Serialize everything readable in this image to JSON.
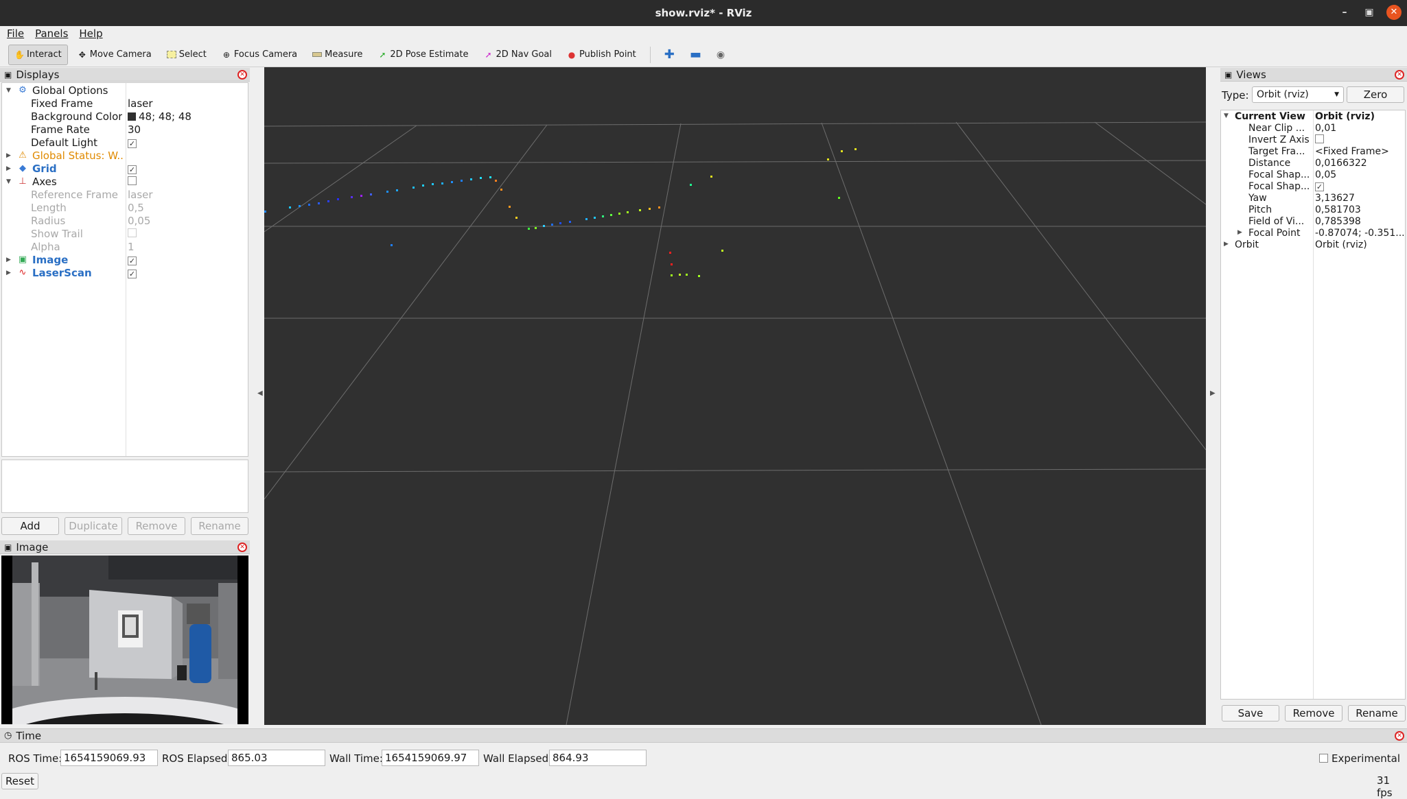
{
  "window": {
    "title": "show.rviz* - RViz"
  },
  "menu": {
    "file": "File",
    "panels": "Panels",
    "help": "Help"
  },
  "toolbar": {
    "interact": "Interact",
    "move_camera": "Move Camera",
    "select": "Select",
    "focus_camera": "Focus Camera",
    "measure": "Measure",
    "pose_estimate": "2D Pose Estimate",
    "nav_goal": "2D Nav Goal",
    "publish_point": "Publish Point"
  },
  "displays": {
    "title": "Displays",
    "global_options": "Global Options",
    "fixed_frame_label": "Fixed Frame",
    "fixed_frame_value": "laser",
    "bg_color_label": "Background Color",
    "bg_color_value": "48; 48; 48",
    "frame_rate_label": "Frame Rate",
    "frame_rate_value": "30",
    "default_light_label": "Default Light",
    "global_status": "Global Status: W...",
    "grid": "Grid",
    "axes": "Axes",
    "ref_frame_label": "Reference Frame",
    "ref_frame_value": "laser",
    "length_label": "Length",
    "length_value": "0,5",
    "radius_label": "Radius",
    "radius_value": "0,05",
    "show_trail_label": "Show Trail",
    "alpha_label": "Alpha",
    "alpha_value": "1",
    "image": "Image",
    "laserscan": "LaserScan",
    "buttons": {
      "add": "Add",
      "duplicate": "Duplicate",
      "remove": "Remove",
      "rename": "Rename"
    }
  },
  "image_panel": {
    "title": "Image"
  },
  "views": {
    "title": "Views",
    "type_label": "Type:",
    "type_value": "Orbit (rviz)",
    "zero": "Zero",
    "rows": [
      {
        "label": "Current View",
        "value": "Orbit (rviz)"
      },
      {
        "label": "Near Clip ...",
        "value": "0,01"
      },
      {
        "label": "Invert Z Axis",
        "value": ""
      },
      {
        "label": "Target Fra...",
        "value": "<Fixed Frame>"
      },
      {
        "label": "Distance",
        "value": "0,0166322"
      },
      {
        "label": "Focal Shap...",
        "value": "0,05"
      },
      {
        "label": "Focal Shap...",
        "value": ""
      },
      {
        "label": "Yaw",
        "value": "3,13627"
      },
      {
        "label": "Pitch",
        "value": "0,581703"
      },
      {
        "label": "Field of Vi...",
        "value": "0,785398"
      },
      {
        "label": "Focal Point",
        "value": "-0.87074; -0.351..."
      },
      {
        "label": "Orbit",
        "value": "Orbit (rviz)"
      }
    ],
    "buttons": {
      "save": "Save",
      "remove": "Remove",
      "rename": "Rename"
    }
  },
  "time": {
    "title": "Time",
    "ros_time_label": "ROS Time:",
    "ros_time": "1654159069.93",
    "ros_elapsed_label": "ROS Elapsed:",
    "ros_elapsed": "865.03",
    "wall_time_label": "Wall Time:",
    "wall_time": "1654159069.97",
    "wall_elapsed_label": "Wall Elapsed:",
    "wall_elapsed": "864.93",
    "experimental": "Experimental",
    "reset": "Reset",
    "fps": "31 fps"
  },
  "colors": {
    "viewport_bg": "#303030",
    "selection_blue": "#2a6fc4",
    "warning": "#e08a00"
  }
}
